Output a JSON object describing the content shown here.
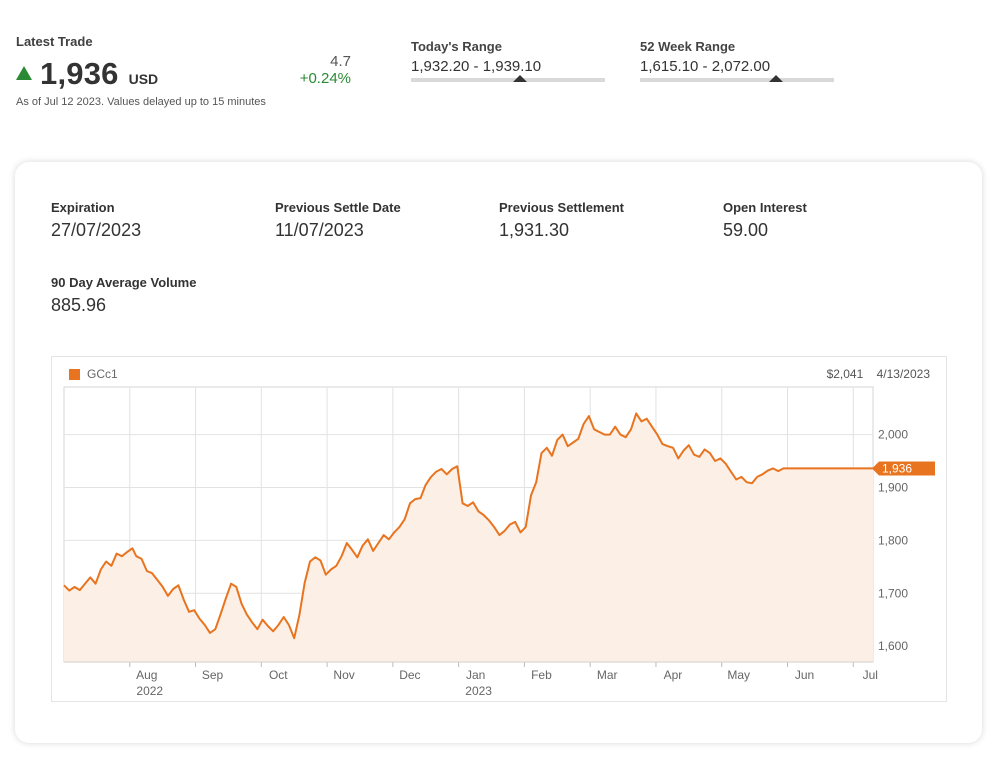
{
  "quote": {
    "latest_label": "Latest Trade",
    "price": "1,936",
    "currency": "USD",
    "change_abs": "4.7",
    "change_pct": "+0.24%",
    "as_of": "As of Jul 12 2023. Values delayed up to 15 minutes",
    "todays_range": {
      "label": "Today's Range",
      "value": "1,932.20 - 1,939.10",
      "position": 0.56
    },
    "week52_range": {
      "label": "52 Week Range",
      "value": "1,615.10 - 2,072.00",
      "position": 0.7
    }
  },
  "stats": [
    {
      "label": "Expiration",
      "value": "27/07/2023"
    },
    {
      "label": "Previous Settle Date",
      "value": "11/07/2023"
    },
    {
      "label": "Previous Settlement",
      "value": "1,931.30"
    },
    {
      "label": "Open Interest",
      "value": "59.00"
    },
    {
      "label": "90 Day Average Volume",
      "value": "885.96"
    }
  ],
  "chart": {
    "legend": "GCc1",
    "hover_value": "$2,041",
    "hover_date": "4/13/2023",
    "last_label": "1,936"
  },
  "colors": {
    "accent": "#e8741f",
    "area_fill": "#fcefe6",
    "up": "#2a8a34"
  },
  "chart_data": {
    "type": "area",
    "ylim": [
      1570,
      2090
    ],
    "yticks": [
      1600,
      1700,
      1800,
      1900,
      2000
    ],
    "ytick_labels": [
      "1,600",
      "1,700",
      "1,800",
      "1,900",
      "2,000"
    ],
    "x_ticks": [
      {
        "label": "Aug",
        "sub": "2022",
        "month": 1
      },
      {
        "label": "Sep",
        "sub": "",
        "month": 2
      },
      {
        "label": "Oct",
        "sub": "",
        "month": 3
      },
      {
        "label": "Nov",
        "sub": "",
        "month": 4
      },
      {
        "label": "Dec",
        "sub": "",
        "month": 5
      },
      {
        "label": "Jan",
        "sub": "2023",
        "month": 6
      },
      {
        "label": "Feb",
        "sub": "",
        "month": 7
      },
      {
        "label": "Mar",
        "sub": "",
        "month": 8
      },
      {
        "label": "Apr",
        "sub": "",
        "month": 9
      },
      {
        "label": "May",
        "sub": "",
        "month": 10
      },
      {
        "label": "Jun",
        "sub": "",
        "month": 11
      },
      {
        "label": "Jul",
        "sub": "",
        "month": 12
      }
    ],
    "series": [
      {
        "name": "GCc1",
        "x": [
          0.0,
          0.08,
          0.16,
          0.24,
          0.32,
          0.4,
          0.48,
          0.56,
          0.64,
          0.72,
          0.8,
          0.88,
          0.96,
          1.04,
          1.1,
          1.18,
          1.26,
          1.34,
          1.42,
          1.5,
          1.58,
          1.66,
          1.74,
          1.82,
          1.9,
          1.98,
          2.06,
          2.14,
          2.22,
          2.3,
          2.38,
          2.46,
          2.54,
          2.62,
          2.7,
          2.78,
          2.86,
          2.94,
          3.02,
          3.1,
          3.18,
          3.26,
          3.34,
          3.42,
          3.5,
          3.58,
          3.66,
          3.74,
          3.82,
          3.9,
          3.98,
          4.06,
          4.14,
          4.22,
          4.3,
          4.38,
          4.46,
          4.54,
          4.62,
          4.7,
          4.78,
          4.86,
          4.94,
          5.02,
          5.1,
          5.18,
          5.26,
          5.34,
          5.42,
          5.5,
          5.58,
          5.66,
          5.74,
          5.82,
          5.9,
          5.98,
          6.06,
          6.14,
          6.22,
          6.3,
          6.38,
          6.46,
          6.54,
          6.62,
          6.7,
          6.78,
          6.86,
          6.94,
          7.02,
          7.1,
          7.18,
          7.26,
          7.34,
          7.42,
          7.5,
          7.58,
          7.66,
          7.74,
          7.82,
          7.9,
          7.98,
          8.06,
          8.14,
          8.22,
          8.3,
          8.38,
          8.46,
          8.54,
          8.62,
          8.7,
          8.78,
          8.86,
          8.94,
          9.02,
          9.1,
          9.18,
          9.26,
          9.34,
          9.42,
          9.5,
          9.58,
          9.66,
          9.74,
          9.82,
          9.9,
          9.98,
          10.06,
          10.14,
          10.22,
          10.3,
          10.38,
          10.46,
          10.54,
          10.62,
          10.7,
          10.78,
          10.86,
          10.94,
          11.02,
          11.1,
          11.18,
          11.26,
          11.34,
          11.42,
          11.5,
          11.58,
          11.66,
          11.74,
          11.82,
          11.9,
          11.98,
          12.06,
          12.14,
          12.22,
          12.3
        ],
        "values": [
          1715,
          1705,
          1712,
          1706,
          1718,
          1730,
          1718,
          1745,
          1760,
          1752,
          1775,
          1770,
          1778,
          1785,
          1770,
          1765,
          1742,
          1738,
          1725,
          1712,
          1695,
          1708,
          1715,
          1688,
          1665,
          1668,
          1652,
          1640,
          1625,
          1632,
          1660,
          1690,
          1718,
          1712,
          1680,
          1660,
          1645,
          1632,
          1650,
          1638,
          1628,
          1640,
          1655,
          1640,
          1615,
          1660,
          1720,
          1760,
          1768,
          1762,
          1735,
          1745,
          1752,
          1770,
          1795,
          1782,
          1768,
          1790,
          1802,
          1780,
          1795,
          1810,
          1802,
          1815,
          1825,
          1840,
          1870,
          1878,
          1880,
          1905,
          1920,
          1930,
          1935,
          1925,
          1935,
          1940,
          1870,
          1865,
          1872,
          1855,
          1848,
          1838,
          1825,
          1810,
          1818,
          1830,
          1835,
          1815,
          1825,
          1885,
          1910,
          1965,
          1975,
          1960,
          1990,
          2000,
          1978,
          1985,
          1992,
          2020,
          2035,
          2010,
          2005,
          2000,
          2000,
          2015,
          2000,
          1995,
          2010,
          2040,
          2025,
          2030,
          2015,
          2000,
          1982,
          1978,
          1975,
          1955,
          1970,
          1980,
          1962,
          1958,
          1972,
          1965,
          1950,
          1955,
          1945,
          1930,
          1915,
          1920,
          1910,
          1908,
          1920,
          1925,
          1932,
          1936,
          1931,
          1936,
          1936,
          1936,
          1936,
          1936,
          1936,
          1936,
          1936,
          1936,
          1936,
          1936,
          1936,
          1936,
          1936,
          1936,
          1936,
          1936,
          1936
        ]
      }
    ]
  }
}
